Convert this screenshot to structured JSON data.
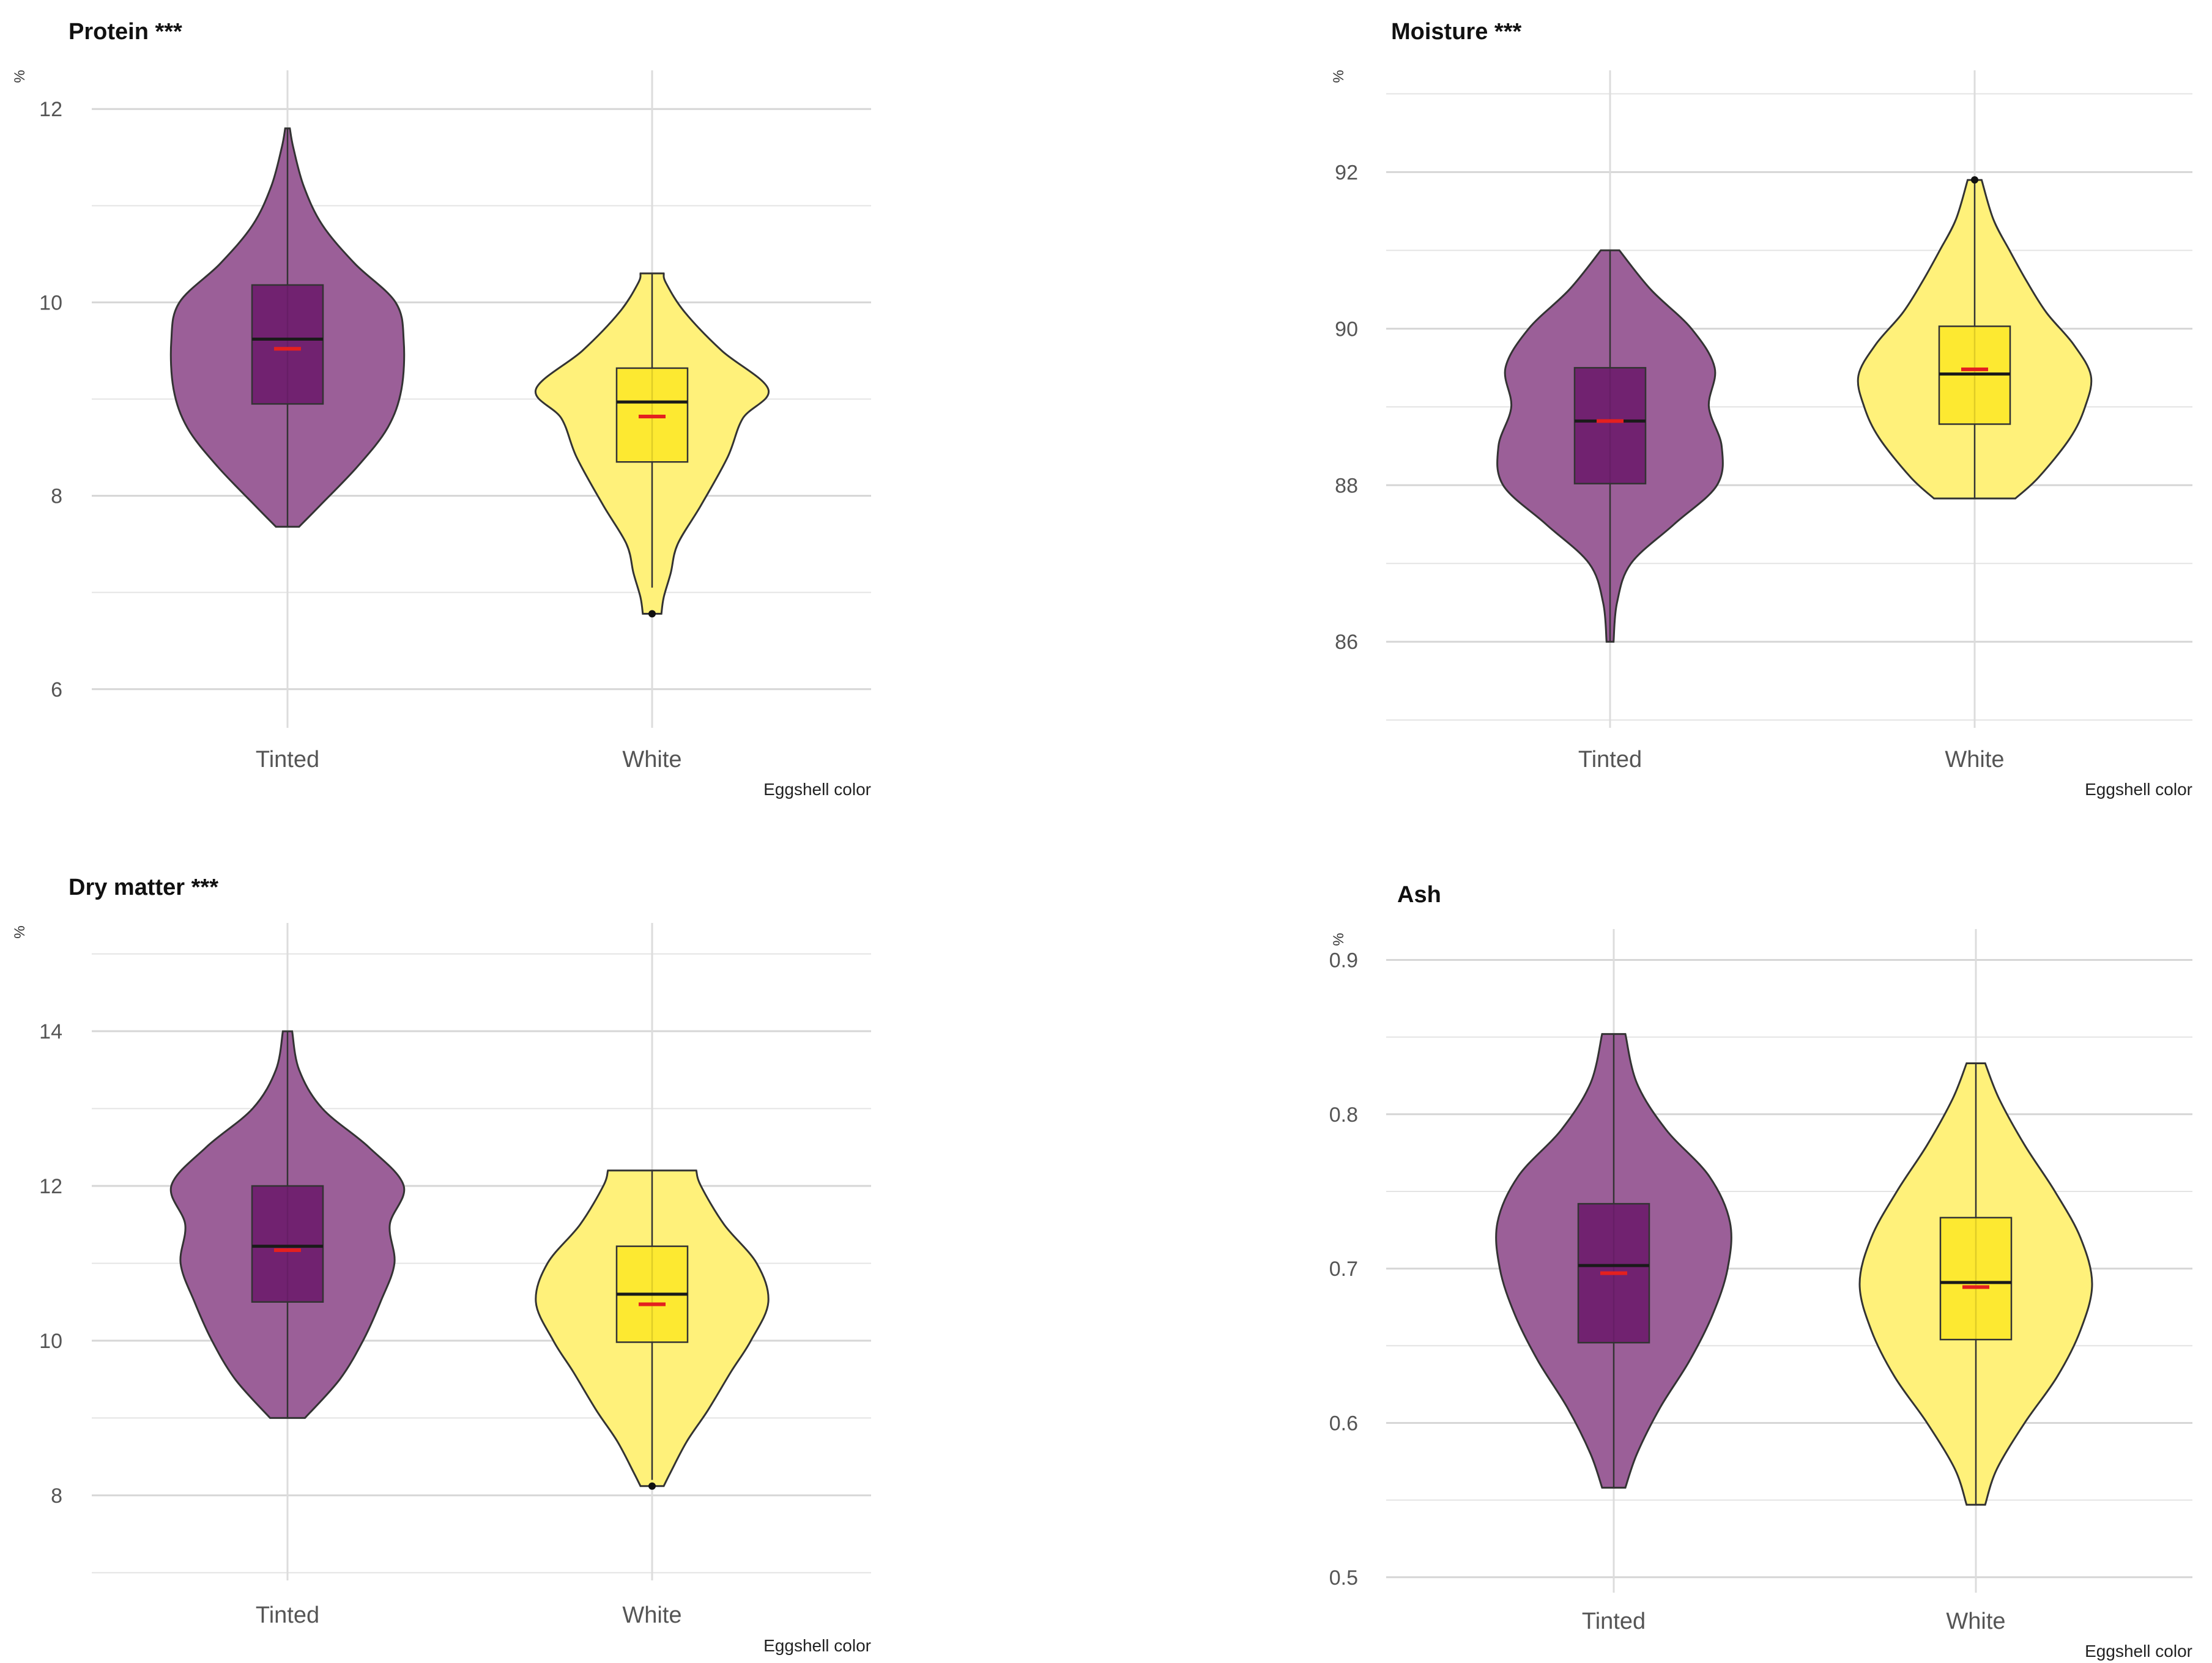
{
  "figure_colors": {
    "tinted_fill": "#9b5f98",
    "tinted_box": "#6d1c6b",
    "white_fill": "#fff17a",
    "white_box": "#fde725",
    "mean_marker": "#e4201f",
    "outline": "#333333"
  },
  "chart_data": [
    {
      "type": "violin",
      "title": "Protein ***",
      "ylabel": "%",
      "xlabel": "Eggshell color",
      "categories": [
        "Tinted",
        "White"
      ],
      "ylim": [
        5.6,
        12.4
      ],
      "yticks": [
        6,
        8,
        10,
        12
      ],
      "y_tick_labels": [
        "6",
        "8",
        "10",
        "12"
      ],
      "minor_ticks": [
        7,
        9,
        11
      ],
      "groups": [
        {
          "name": "Tinted",
          "q1": 8.95,
          "median": 9.62,
          "q3": 10.18,
          "mean": 9.52,
          "whisker_low": 7.68,
          "whisker_high": 11.8,
          "outliers": [],
          "density_y": [
            7.68,
            7.9,
            8.3,
            8.7,
            9.1,
            9.6,
            10.0,
            10.4,
            10.8,
            11.2,
            11.6,
            11.8
          ],
          "density_w": [
            0.1,
            0.28,
            0.6,
            0.86,
            0.98,
            1.0,
            0.93,
            0.58,
            0.3,
            0.14,
            0.05,
            0.02
          ]
        },
        {
          "name": "White",
          "q1": 8.35,
          "median": 8.97,
          "q3": 9.32,
          "mean": 8.82,
          "whisker_low": 7.05,
          "whisker_high": 10.3,
          "outliers": [
            6.78
          ],
          "density_y": [
            6.78,
            6.95,
            7.2,
            7.5,
            7.9,
            8.4,
            8.8,
            9.1,
            9.5,
            9.9,
            10.2,
            10.3
          ],
          "density_w": [
            0.08,
            0.1,
            0.16,
            0.22,
            0.42,
            0.65,
            0.78,
            1.0,
            0.6,
            0.28,
            0.12,
            0.1
          ]
        }
      ]
    },
    {
      "type": "violin",
      "title": "Moisture ***",
      "ylabel": "%",
      "xlabel": "Eggshell color",
      "categories": [
        "Tinted",
        "White"
      ],
      "ylim": [
        84.9,
        93.3
      ],
      "yticks": [
        86,
        88,
        90,
        92
      ],
      "y_tick_labels": [
        "86",
        "88",
        "90",
        "92"
      ],
      "minor_ticks": [
        85,
        87,
        89,
        91,
        93
      ],
      "groups": [
        {
          "name": "Tinted",
          "q1": 88.02,
          "median": 88.82,
          "q3": 89.5,
          "mean": 88.82,
          "whisker_low": 86.0,
          "whisker_high": 91.0,
          "outliers": [],
          "density_y": [
            86.0,
            86.5,
            87.0,
            87.5,
            88.0,
            88.5,
            89.0,
            89.5,
            90.0,
            90.5,
            91.0
          ],
          "density_w": [
            0.03,
            0.06,
            0.18,
            0.55,
            0.92,
            0.96,
            0.85,
            0.9,
            0.7,
            0.35,
            0.08
          ]
        },
        {
          "name": "White",
          "q1": 88.78,
          "median": 89.42,
          "q3": 90.03,
          "mean": 89.48,
          "whisker_low": 87.83,
          "whisker_high": 91.9,
          "outliers": [
            91.9
          ],
          "density_y": [
            87.83,
            88.1,
            88.6,
            89.0,
            89.4,
            89.8,
            90.2,
            90.6,
            91.0,
            91.4,
            91.9
          ],
          "density_w": [
            0.35,
            0.55,
            0.82,
            0.95,
            1.0,
            0.85,
            0.62,
            0.45,
            0.3,
            0.16,
            0.06
          ]
        }
      ]
    },
    {
      "type": "violin",
      "title": "Dry matter ***",
      "ylabel": "%",
      "xlabel": "Eggshell color",
      "categories": [
        "Tinted",
        "White"
      ],
      "ylim": [
        6.9,
        15.4
      ],
      "yticks": [
        8,
        10,
        12,
        14
      ],
      "y_tick_labels": [
        "8",
        "10",
        "12",
        "14"
      ],
      "minor_ticks": [
        7,
        9,
        11,
        13,
        15
      ],
      "groups": [
        {
          "name": "Tinted",
          "q1": 10.5,
          "median": 11.22,
          "q3": 12.0,
          "mean": 11.17,
          "whisker_low": 9.0,
          "whisker_high": 14.0,
          "outliers": [],
          "density_y": [
            9.0,
            9.5,
            10.0,
            10.5,
            11.0,
            11.5,
            12.0,
            12.5,
            13.0,
            13.5,
            14.0
          ],
          "density_w": [
            0.15,
            0.45,
            0.65,
            0.8,
            0.92,
            0.88,
            1.0,
            0.7,
            0.3,
            0.1,
            0.04
          ]
        },
        {
          "name": "White",
          "q1": 9.98,
          "median": 10.6,
          "q3": 11.22,
          "mean": 10.47,
          "whisker_low": 8.2,
          "whisker_high": 12.2,
          "outliers": [
            8.12
          ],
          "density_y": [
            8.12,
            8.3,
            8.7,
            9.1,
            9.6,
            10.0,
            10.5,
            11.0,
            11.5,
            12.0,
            12.2
          ],
          "density_w": [
            0.1,
            0.16,
            0.3,
            0.48,
            0.68,
            0.85,
            1.0,
            0.9,
            0.62,
            0.42,
            0.38
          ]
        }
      ]
    },
    {
      "type": "violin",
      "title": "Ash",
      "ylabel": "%",
      "xlabel": "Eggshell color",
      "categories": [
        "Tinted",
        "White"
      ],
      "ylim": [
        0.49,
        0.92
      ],
      "yticks": [
        0.5,
        0.6,
        0.7,
        0.8,
        0.9
      ],
      "y_tick_labels": [
        "0.5",
        "0.6",
        "0.7",
        "0.8",
        "0.9"
      ],
      "minor_ticks": [
        0.55,
        0.65,
        0.75,
        0.85
      ],
      "groups": [
        {
          "name": "Tinted",
          "q1": 0.652,
          "median": 0.702,
          "q3": 0.742,
          "mean": 0.697,
          "whisker_low": 0.558,
          "whisker_high": 0.852,
          "outliers": [],
          "density_y": [
            0.558,
            0.58,
            0.61,
            0.64,
            0.67,
            0.7,
            0.73,
            0.76,
            0.79,
            0.82,
            0.852
          ],
          "density_w": [
            0.1,
            0.2,
            0.4,
            0.65,
            0.85,
            0.98,
            1.0,
            0.82,
            0.45,
            0.2,
            0.1
          ]
        },
        {
          "name": "White",
          "q1": 0.654,
          "median": 0.691,
          "q3": 0.733,
          "mean": 0.688,
          "whisker_low": 0.547,
          "whisker_high": 0.833,
          "outliers": [],
          "density_y": [
            0.547,
            0.57,
            0.6,
            0.63,
            0.66,
            0.69,
            0.72,
            0.75,
            0.78,
            0.81,
            0.833
          ],
          "density_w": [
            0.08,
            0.18,
            0.42,
            0.7,
            0.9,
            1.0,
            0.9,
            0.68,
            0.42,
            0.2,
            0.08
          ]
        }
      ]
    }
  ]
}
